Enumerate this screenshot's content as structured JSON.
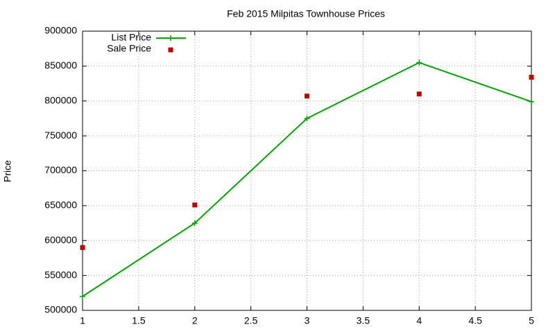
{
  "chart_data": {
    "type": "line",
    "title": "Feb 2015 Milpitas Townhouse Prices",
    "y_label": "Price",
    "x": [
      1,
      2,
      3,
      4,
      5
    ],
    "series": [
      {
        "name": "List Price",
        "color": "#00a000",
        "style": "linespoints",
        "values": [
          520000,
          625000,
          775000,
          855000,
          799000
        ]
      },
      {
        "name": "Sale Price",
        "color": "#c00000",
        "style": "points",
        "values": [
          590000,
          651000,
          807000,
          810000,
          834000
        ]
      }
    ],
    "xlim": [
      1,
      5
    ],
    "xticks": [
      1,
      1.5,
      2,
      2.5,
      3,
      3.5,
      4,
      4.5,
      5
    ],
    "ylim": [
      500000,
      900000
    ],
    "yticks": [
      500000,
      550000,
      600000,
      650000,
      700000,
      750000,
      800000,
      850000,
      900000
    ],
    "grid": true,
    "legend": "top-left"
  }
}
